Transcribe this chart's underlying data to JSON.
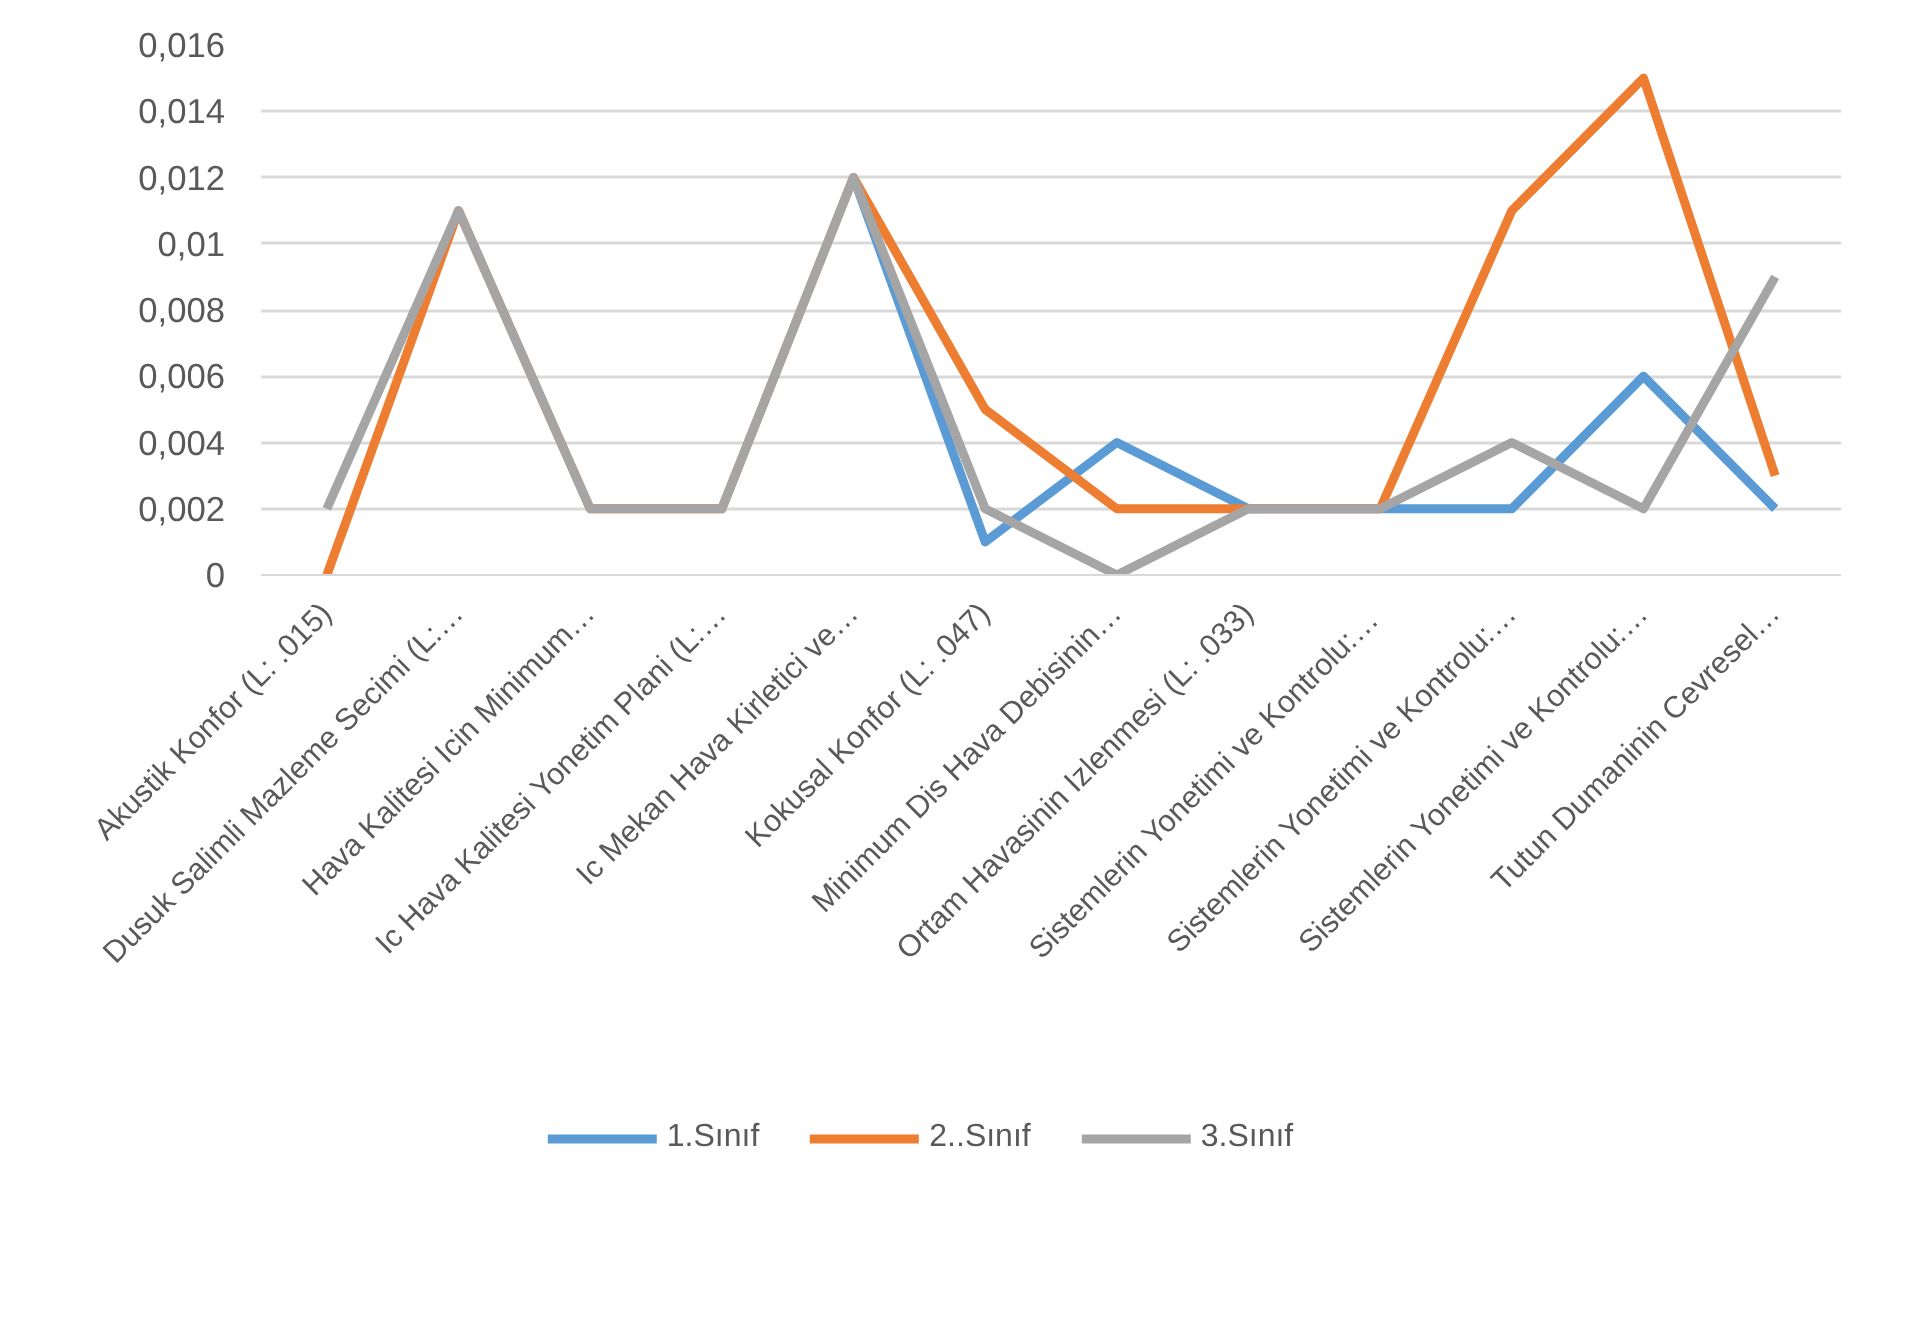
{
  "chart_data": {
    "type": "line",
    "categories": [
      "Akustik Konfor (L: .015)",
      "Dusuk Salimli Mazleme Secimi (L:…",
      "Hava Kalitesi Icin Minimum…",
      "Ic Hava Kalitesi Yonetim Plani (L:…",
      "Ic Mekan Hava Kirletici ve…",
      "Kokusal Konfor (L: .047)",
      "Minimum Dis Hava Debisinin…",
      "Ortam Havasinin Izlenmesi (L: .033)",
      "Sistemlerin Yonetimi ve  Kontrolu:…",
      "Sistemlerin Yonetimi ve Kontrolu:…",
      "Sistemlerin Yonetimi ve Kontrolu:…",
      "Tutun Dumaninin Cevresel…"
    ],
    "series": [
      {
        "name": "1.Sınıf",
        "color": "#5b9bd5",
        "values": [
          null,
          null,
          null,
          null,
          0.012,
          0.001,
          0.004,
          0.002,
          0.002,
          0.002,
          0.006,
          0.002
        ]
      },
      {
        "name": "2..Sınıf",
        "color": "#ed7d31",
        "values": [
          0,
          0.011,
          0.002,
          0.002,
          0.012,
          0.005,
          0.002,
          0.002,
          0.002,
          0.011,
          0.015,
          0.003
        ]
      },
      {
        "name": "3.Sınıf",
        "color": "#a5a5a5",
        "values": [
          0.002,
          0.011,
          0.002,
          0.002,
          0.012,
          0.002,
          0,
          0.002,
          0.002,
          0.004,
          0.002,
          0.009
        ]
      }
    ],
    "ylim": [
      0,
      0.016
    ],
    "yticks": [
      {
        "value": 0,
        "label": "0"
      },
      {
        "value": 0.002,
        "label": "0,002"
      },
      {
        "value": 0.004,
        "label": "0,004"
      },
      {
        "value": 0.006,
        "label": "0,006"
      },
      {
        "value": 0.008,
        "label": "0,008"
      },
      {
        "value": 0.01,
        "label": "0,01"
      },
      {
        "value": 0.012,
        "label": "0,012"
      },
      {
        "value": 0.014,
        "label": "0,014"
      },
      {
        "value": 0.016,
        "label": "0,016"
      }
    ],
    "grid": "y",
    "legend": "bottom",
    "marker": "none",
    "line_style": "solid"
  }
}
